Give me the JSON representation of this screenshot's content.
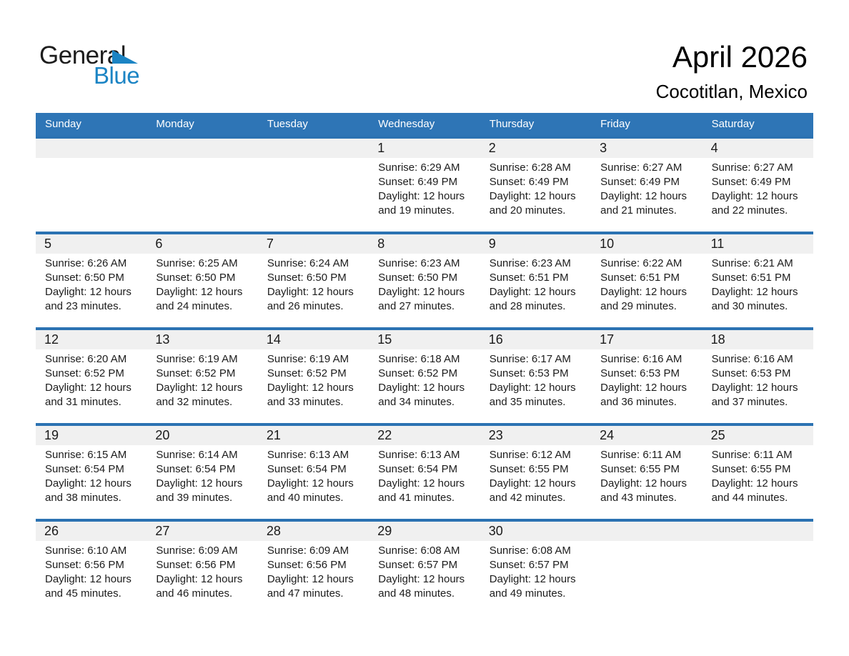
{
  "logo": {
    "general": "General",
    "blue": "Blue"
  },
  "header": {
    "month_year": "April 2026",
    "location": "Cocotitlan, Mexico"
  },
  "colors": {
    "header_bar": "#2E75B6",
    "row_divider": "#2B72B2",
    "day_band": "#F0F0F0",
    "logo_blue": "#1B84C4",
    "weekday_text": "#FFFFFF"
  },
  "weekdays": [
    "Sunday",
    "Monday",
    "Tuesday",
    "Wednesday",
    "Thursday",
    "Friday",
    "Saturday"
  ],
  "weeks": [
    {
      "days": [
        null,
        null,
        null,
        {
          "num": "1",
          "lines": [
            "Sunrise: 6:29 AM",
            "Sunset: 6:49 PM",
            "Daylight: 12 hours",
            "and 19 minutes."
          ]
        },
        {
          "num": "2",
          "lines": [
            "Sunrise: 6:28 AM",
            "Sunset: 6:49 PM",
            "Daylight: 12 hours",
            "and 20 minutes."
          ]
        },
        {
          "num": "3",
          "lines": [
            "Sunrise: 6:27 AM",
            "Sunset: 6:49 PM",
            "Daylight: 12 hours",
            "and 21 minutes."
          ]
        },
        {
          "num": "4",
          "lines": [
            "Sunrise: 6:27 AM",
            "Sunset: 6:49 PM",
            "Daylight: 12 hours",
            "and 22 minutes."
          ]
        }
      ]
    },
    {
      "days": [
        {
          "num": "5",
          "lines": [
            "Sunrise: 6:26 AM",
            "Sunset: 6:50 PM",
            "Daylight: 12 hours",
            "and 23 minutes."
          ]
        },
        {
          "num": "6",
          "lines": [
            "Sunrise: 6:25 AM",
            "Sunset: 6:50 PM",
            "Daylight: 12 hours",
            "and 24 minutes."
          ]
        },
        {
          "num": "7",
          "lines": [
            "Sunrise: 6:24 AM",
            "Sunset: 6:50 PM",
            "Daylight: 12 hours",
            "and 26 minutes."
          ]
        },
        {
          "num": "8",
          "lines": [
            "Sunrise: 6:23 AM",
            "Sunset: 6:50 PM",
            "Daylight: 12 hours",
            "and 27 minutes."
          ]
        },
        {
          "num": "9",
          "lines": [
            "Sunrise: 6:23 AM",
            "Sunset: 6:51 PM",
            "Daylight: 12 hours",
            "and 28 minutes."
          ]
        },
        {
          "num": "10",
          "lines": [
            "Sunrise: 6:22 AM",
            "Sunset: 6:51 PM",
            "Daylight: 12 hours",
            "and 29 minutes."
          ]
        },
        {
          "num": "11",
          "lines": [
            "Sunrise: 6:21 AM",
            "Sunset: 6:51 PM",
            "Daylight: 12 hours",
            "and 30 minutes."
          ]
        }
      ]
    },
    {
      "days": [
        {
          "num": "12",
          "lines": [
            "Sunrise: 6:20 AM",
            "Sunset: 6:52 PM",
            "Daylight: 12 hours",
            "and 31 minutes."
          ]
        },
        {
          "num": "13",
          "lines": [
            "Sunrise: 6:19 AM",
            "Sunset: 6:52 PM",
            "Daylight: 12 hours",
            "and 32 minutes."
          ]
        },
        {
          "num": "14",
          "lines": [
            "Sunrise: 6:19 AM",
            "Sunset: 6:52 PM",
            "Daylight: 12 hours",
            "and 33 minutes."
          ]
        },
        {
          "num": "15",
          "lines": [
            "Sunrise: 6:18 AM",
            "Sunset: 6:52 PM",
            "Daylight: 12 hours",
            "and 34 minutes."
          ]
        },
        {
          "num": "16",
          "lines": [
            "Sunrise: 6:17 AM",
            "Sunset: 6:53 PM",
            "Daylight: 12 hours",
            "and 35 minutes."
          ]
        },
        {
          "num": "17",
          "lines": [
            "Sunrise: 6:16 AM",
            "Sunset: 6:53 PM",
            "Daylight: 12 hours",
            "and 36 minutes."
          ]
        },
        {
          "num": "18",
          "lines": [
            "Sunrise: 6:16 AM",
            "Sunset: 6:53 PM",
            "Daylight: 12 hours",
            "and 37 minutes."
          ]
        }
      ]
    },
    {
      "days": [
        {
          "num": "19",
          "lines": [
            "Sunrise: 6:15 AM",
            "Sunset: 6:54 PM",
            "Daylight: 12 hours",
            "and 38 minutes."
          ]
        },
        {
          "num": "20",
          "lines": [
            "Sunrise: 6:14 AM",
            "Sunset: 6:54 PM",
            "Daylight: 12 hours",
            "and 39 minutes."
          ]
        },
        {
          "num": "21",
          "lines": [
            "Sunrise: 6:13 AM",
            "Sunset: 6:54 PM",
            "Daylight: 12 hours",
            "and 40 minutes."
          ]
        },
        {
          "num": "22",
          "lines": [
            "Sunrise: 6:13 AM",
            "Sunset: 6:54 PM",
            "Daylight: 12 hours",
            "and 41 minutes."
          ]
        },
        {
          "num": "23",
          "lines": [
            "Sunrise: 6:12 AM",
            "Sunset: 6:55 PM",
            "Daylight: 12 hours",
            "and 42 minutes."
          ]
        },
        {
          "num": "24",
          "lines": [
            "Sunrise: 6:11 AM",
            "Sunset: 6:55 PM",
            "Daylight: 12 hours",
            "and 43 minutes."
          ]
        },
        {
          "num": "25",
          "lines": [
            "Sunrise: 6:11 AM",
            "Sunset: 6:55 PM",
            "Daylight: 12 hours",
            "and 44 minutes."
          ]
        }
      ]
    },
    {
      "days": [
        {
          "num": "26",
          "lines": [
            "Sunrise: 6:10 AM",
            "Sunset: 6:56 PM",
            "Daylight: 12 hours",
            "and 45 minutes."
          ]
        },
        {
          "num": "27",
          "lines": [
            "Sunrise: 6:09 AM",
            "Sunset: 6:56 PM",
            "Daylight: 12 hours",
            "and 46 minutes."
          ]
        },
        {
          "num": "28",
          "lines": [
            "Sunrise: 6:09 AM",
            "Sunset: 6:56 PM",
            "Daylight: 12 hours",
            "and 47 minutes."
          ]
        },
        {
          "num": "29",
          "lines": [
            "Sunrise: 6:08 AM",
            "Sunset: 6:57 PM",
            "Daylight: 12 hours",
            "and 48 minutes."
          ]
        },
        {
          "num": "30",
          "lines": [
            "Sunrise: 6:08 AM",
            "Sunset: 6:57 PM",
            "Daylight: 12 hours",
            "and 49 minutes."
          ]
        },
        null,
        null
      ]
    }
  ]
}
